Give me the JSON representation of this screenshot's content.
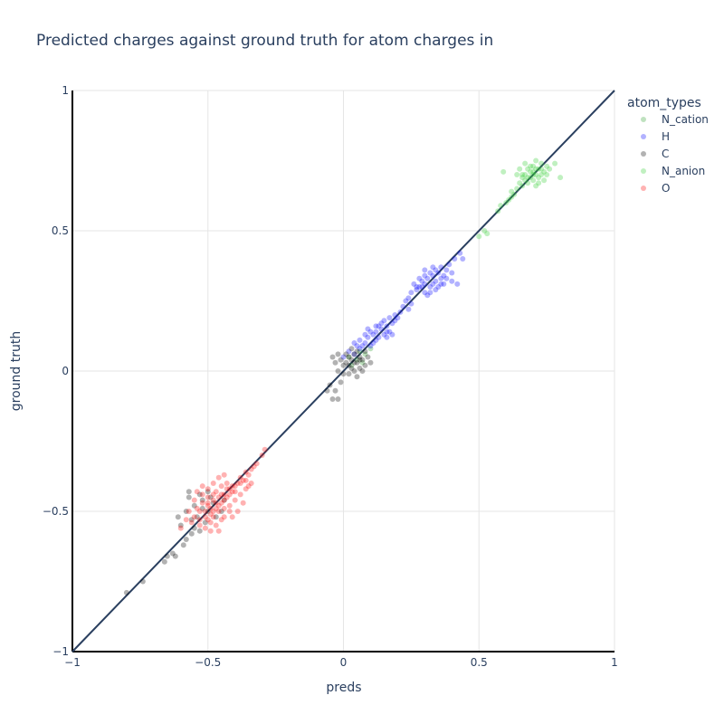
{
  "chart_data": {
    "type": "scatter",
    "title": "Predicted charges against ground truth for atom charges in",
    "xlabel": "preds",
    "ylabel": "ground truth",
    "xlim": [
      -1,
      1
    ],
    "ylim": [
      -1,
      1
    ],
    "x_ticks": [
      -1,
      -0.5,
      0,
      0.5,
      1
    ],
    "x_tick_labels": [
      "−1",
      "−0.5",
      "0",
      "0.5",
      "1"
    ],
    "y_ticks": [
      -1,
      -0.5,
      0,
      0.5,
      1
    ],
    "y_tick_labels": [
      "−1",
      "−0.5",
      "0",
      "0.5",
      "1"
    ],
    "grid": true,
    "reference_line": {
      "x": [
        -1,
        1
      ],
      "y": [
        -1,
        1
      ],
      "color": "#2a3f5f"
    },
    "legend": {
      "title": "atom_types",
      "placement": "top-right outside"
    },
    "series": [
      {
        "name": "N_cation",
        "color": "#2ca02c",
        "points": [
          [
            0.05,
            0.04
          ],
          [
            0.08,
            0.06
          ],
          [
            0.03,
            0.02
          ],
          [
            0.06,
            0.07
          ],
          [
            0.1,
            0.08
          ],
          [
            0.02,
            0.05
          ],
          [
            0.07,
            0.03
          ]
        ]
      },
      {
        "name": "H",
        "color": "#0000ff",
        "points": [
          [
            0.0,
            0.05
          ],
          [
            0.02,
            0.07
          ],
          [
            0.04,
            0.06
          ],
          [
            0.05,
            0.09
          ],
          [
            0.06,
            0.08
          ],
          [
            0.08,
            0.1
          ],
          [
            0.09,
            0.12
          ],
          [
            0.1,
            0.09
          ],
          [
            0.11,
            0.13
          ],
          [
            0.12,
            0.14
          ],
          [
            0.13,
            0.12
          ],
          [
            0.14,
            0.15
          ],
          [
            0.15,
            0.13
          ],
          [
            0.16,
            0.16
          ],
          [
            0.17,
            0.14
          ],
          [
            0.18,
            0.17
          ],
          [
            0.12,
            0.11
          ],
          [
            0.1,
            0.14
          ],
          [
            0.14,
            0.17
          ],
          [
            0.16,
            0.12
          ],
          [
            0.08,
            0.13
          ],
          [
            0.07,
            0.09
          ],
          [
            0.13,
            0.16
          ],
          [
            0.19,
            0.18
          ],
          [
            0.2,
            0.19
          ],
          [
            0.11,
            0.1
          ],
          [
            0.15,
            0.18
          ],
          [
            0.17,
            0.19
          ],
          [
            0.09,
            0.15
          ],
          [
            0.06,
            0.11
          ],
          [
            0.21,
            0.21
          ],
          [
            0.22,
            0.23
          ],
          [
            0.24,
            0.22
          ],
          [
            0.23,
            0.25
          ],
          [
            0.25,
            0.24
          ],
          [
            0.19,
            0.2
          ],
          [
            0.18,
            0.13
          ],
          [
            0.04,
            0.1
          ],
          [
            0.12,
            0.16
          ],
          [
            0.16,
            0.14
          ],
          [
            0.27,
            0.29
          ],
          [
            0.28,
            0.3
          ],
          [
            0.29,
            0.32
          ],
          [
            0.3,
            0.31
          ],
          [
            0.31,
            0.33
          ],
          [
            0.32,
            0.3
          ],
          [
            0.33,
            0.34
          ],
          [
            0.34,
            0.32
          ],
          [
            0.35,
            0.35
          ],
          [
            0.36,
            0.33
          ],
          [
            0.3,
            0.28
          ],
          [
            0.32,
            0.35
          ],
          [
            0.34,
            0.36
          ],
          [
            0.36,
            0.37
          ],
          [
            0.38,
            0.36
          ],
          [
            0.29,
            0.3
          ],
          [
            0.31,
            0.27
          ],
          [
            0.33,
            0.31
          ],
          [
            0.35,
            0.3
          ],
          [
            0.37,
            0.34
          ],
          [
            0.26,
            0.31
          ],
          [
            0.28,
            0.33
          ],
          [
            0.3,
            0.34
          ],
          [
            0.32,
            0.28
          ],
          [
            0.34,
            0.29
          ],
          [
            0.36,
            0.31
          ],
          [
            0.38,
            0.33
          ],
          [
            0.4,
            0.35
          ],
          [
            0.41,
            0.4
          ],
          [
            0.43,
            0.42
          ],
          [
            0.4,
            0.32
          ],
          [
            0.25,
            0.28
          ],
          [
            0.27,
            0.3
          ],
          [
            0.33,
            0.37
          ],
          [
            0.39,
            0.38
          ],
          [
            0.3,
            0.36
          ],
          [
            0.37,
            0.31
          ],
          [
            0.42,
            0.31
          ],
          [
            0.24,
            0.26
          ],
          [
            0.44,
            0.4
          ]
        ]
      },
      {
        "name": "C",
        "color": "#000000",
        "points": [
          [
            0.01,
            0.03
          ],
          [
            0.02,
            0.05
          ],
          [
            0.03,
            0.04
          ],
          [
            0.04,
            0.06
          ],
          [
            0.05,
            0.03
          ],
          [
            0.06,
            0.05
          ],
          [
            0.03,
            0.01
          ],
          [
            0.0,
            0.02
          ],
          [
            -0.01,
            0.04
          ],
          [
            -0.02,
            0.06
          ],
          [
            0.04,
            0.0
          ],
          [
            0.07,
            0.04
          ],
          [
            0.08,
            0.02
          ],
          [
            0.02,
            -0.01
          ],
          [
            0.05,
            0.07
          ],
          [
            0.06,
            0.01
          ],
          [
            0.01,
            0.06
          ],
          [
            -0.03,
            0.03
          ],
          [
            0.09,
            0.05
          ],
          [
            0.03,
            0.08
          ],
          [
            0.0,
            -0.01
          ],
          [
            -0.02,
            0.0
          ],
          [
            0.05,
            -0.02
          ],
          [
            0.08,
            0.07
          ],
          [
            0.1,
            0.03
          ],
          [
            -0.04,
            0.05
          ],
          [
            0.02,
            0.02
          ],
          [
            0.04,
            0.03
          ],
          [
            0.06,
            0.04
          ],
          [
            0.07,
            0.0
          ],
          [
            -0.03,
            -0.07
          ],
          [
            -0.02,
            -0.1
          ],
          [
            -0.04,
            -0.1
          ],
          [
            -0.05,
            -0.05
          ],
          [
            -0.01,
            -0.04
          ],
          [
            -0.06,
            -0.07
          ],
          [
            -0.5,
            -0.5
          ],
          [
            -0.52,
            -0.46
          ],
          [
            -0.55,
            -0.48
          ],
          [
            -0.57,
            -0.45
          ],
          [
            -0.54,
            -0.52
          ],
          [
            -0.49,
            -0.45
          ],
          [
            -0.51,
            -0.54
          ],
          [
            -0.56,
            -0.53
          ],
          [
            -0.58,
            -0.5
          ],
          [
            -0.53,
            -0.44
          ],
          [
            -0.47,
            -0.52
          ],
          [
            -0.55,
            -0.56
          ],
          [
            -0.6,
            -0.55
          ],
          [
            -0.58,
            -0.6
          ],
          [
            -0.56,
            -0.58
          ],
          [
            -0.59,
            -0.62
          ],
          [
            -0.63,
            -0.65
          ],
          [
            -0.65,
            -0.66
          ],
          [
            -0.66,
            -0.68
          ],
          [
            -0.62,
            -0.66
          ],
          [
            -0.8,
            -0.79
          ],
          [
            -0.74,
            -0.75
          ],
          [
            -0.48,
            -0.47
          ],
          [
            -0.5,
            -0.43
          ],
          [
            -0.45,
            -0.5
          ],
          [
            -0.53,
            -0.57
          ],
          [
            -0.61,
            -0.52
          ],
          [
            -0.57,
            -0.43
          ],
          [
            -0.44,
            -0.46
          ],
          [
            -0.52,
            -0.49
          ]
        ]
      },
      {
        "name": "N_anion",
        "color": "#2ecc2e",
        "points": [
          [
            0.67,
            0.7
          ],
          [
            0.68,
            0.72
          ],
          [
            0.69,
            0.71
          ],
          [
            0.7,
            0.73
          ],
          [
            0.71,
            0.7
          ],
          [
            0.72,
            0.72
          ],
          [
            0.73,
            0.74
          ],
          [
            0.7,
            0.68
          ],
          [
            0.68,
            0.67
          ],
          [
            0.66,
            0.69
          ],
          [
            0.65,
            0.72
          ],
          [
            0.67,
            0.74
          ],
          [
            0.72,
            0.69
          ],
          [
            0.74,
            0.71
          ],
          [
            0.75,
            0.73
          ],
          [
            0.73,
            0.7
          ],
          [
            0.71,
            0.75
          ],
          [
            0.69,
            0.69
          ],
          [
            0.66,
            0.66
          ],
          [
            0.64,
            0.65
          ],
          [
            0.63,
            0.63
          ],
          [
            0.62,
            0.62
          ],
          [
            0.61,
            0.61
          ],
          [
            0.6,
            0.6
          ],
          [
            0.58,
            0.59
          ],
          [
            0.57,
            0.57
          ],
          [
            0.66,
            0.7
          ],
          [
            0.7,
            0.71
          ],
          [
            0.72,
            0.67
          ],
          [
            0.74,
            0.68
          ],
          [
            0.76,
            0.72
          ],
          [
            0.78,
            0.74
          ],
          [
            0.8,
            0.69
          ],
          [
            0.59,
            0.71
          ],
          [
            0.5,
            0.48
          ],
          [
            0.52,
            0.5
          ],
          [
            0.53,
            0.49
          ],
          [
            0.65,
            0.67
          ],
          [
            0.69,
            0.73
          ],
          [
            0.71,
            0.72
          ],
          [
            0.68,
            0.69
          ],
          [
            0.7,
            0.7
          ],
          [
            0.73,
            0.72
          ],
          [
            0.75,
            0.7
          ],
          [
            0.67,
            0.68
          ],
          [
            0.64,
            0.7
          ],
          [
            0.62,
            0.64
          ],
          [
            0.71,
            0.66
          ]
        ]
      },
      {
        "name": "O",
        "color": "#ff0000",
        "points": [
          [
            -0.5,
            -0.48
          ],
          [
            -0.48,
            -0.46
          ],
          [
            -0.46,
            -0.45
          ],
          [
            -0.47,
            -0.49
          ],
          [
            -0.49,
            -0.51
          ],
          [
            -0.51,
            -0.5
          ],
          [
            -0.45,
            -0.44
          ],
          [
            -0.44,
            -0.46
          ],
          [
            -0.43,
            -0.42
          ],
          [
            -0.42,
            -0.44
          ],
          [
            -0.52,
            -0.47
          ],
          [
            -0.53,
            -0.5
          ],
          [
            -0.54,
            -0.49
          ],
          [
            -0.41,
            -0.41
          ],
          [
            -0.4,
            -0.43
          ],
          [
            -0.39,
            -0.4
          ],
          [
            -0.38,
            -0.38
          ],
          [
            -0.37,
            -0.39
          ],
          [
            -0.36,
            -0.36
          ],
          [
            -0.35,
            -0.37
          ],
          [
            -0.34,
            -0.35
          ],
          [
            -0.33,
            -0.34
          ],
          [
            -0.32,
            -0.33
          ],
          [
            -0.3,
            -0.3
          ],
          [
            -0.29,
            -0.28
          ],
          [
            -0.48,
            -0.52
          ],
          [
            -0.46,
            -0.5
          ],
          [
            -0.44,
            -0.49
          ],
          [
            -0.42,
            -0.48
          ],
          [
            -0.5,
            -0.45
          ],
          [
            -0.52,
            -0.44
          ],
          [
            -0.47,
            -0.43
          ],
          [
            -0.45,
            -0.41
          ],
          [
            -0.43,
            -0.4
          ],
          [
            -0.49,
            -0.54
          ],
          [
            -0.47,
            -0.55
          ],
          [
            -0.45,
            -0.53
          ],
          [
            -0.55,
            -0.52
          ],
          [
            -0.56,
            -0.54
          ],
          [
            -0.53,
            -0.53
          ],
          [
            -0.51,
            -0.56
          ],
          [
            -0.49,
            -0.57
          ],
          [
            -0.46,
            -0.57
          ],
          [
            -0.44,
            -0.52
          ],
          [
            -0.42,
            -0.5
          ],
          [
            -0.4,
            -0.46
          ],
          [
            -0.38,
            -0.44
          ],
          [
            -0.36,
            -0.42
          ],
          [
            -0.34,
            -0.4
          ],
          [
            -0.41,
            -0.52
          ],
          [
            -0.39,
            -0.5
          ],
          [
            -0.37,
            -0.47
          ],
          [
            -0.55,
            -0.46
          ],
          [
            -0.57,
            -0.5
          ],
          [
            -0.58,
            -0.53
          ],
          [
            -0.6,
            -0.56
          ],
          [
            -0.54,
            -0.43
          ],
          [
            -0.52,
            -0.41
          ],
          [
            -0.5,
            -0.42
          ],
          [
            -0.48,
            -0.4
          ],
          [
            -0.46,
            -0.38
          ],
          [
            -0.44,
            -0.37
          ],
          [
            -0.47,
            -0.47
          ],
          [
            -0.49,
            -0.49
          ],
          [
            -0.51,
            -0.52
          ],
          [
            -0.45,
            -0.47
          ],
          [
            -0.43,
            -0.45
          ],
          [
            -0.41,
            -0.43
          ],
          [
            -0.53,
            -0.55
          ],
          [
            -0.5,
            -0.53
          ],
          [
            -0.48,
            -0.5
          ],
          [
            -0.46,
            -0.48
          ],
          [
            -0.44,
            -0.44
          ],
          [
            -0.42,
            -0.42
          ],
          [
            -0.4,
            -0.41
          ],
          [
            -0.38,
            -0.4
          ],
          [
            -0.36,
            -0.39
          ],
          [
            -0.35,
            -0.41
          ],
          [
            -0.48,
            -0.44
          ],
          [
            -0.5,
            -0.47
          ]
        ]
      }
    ]
  }
}
